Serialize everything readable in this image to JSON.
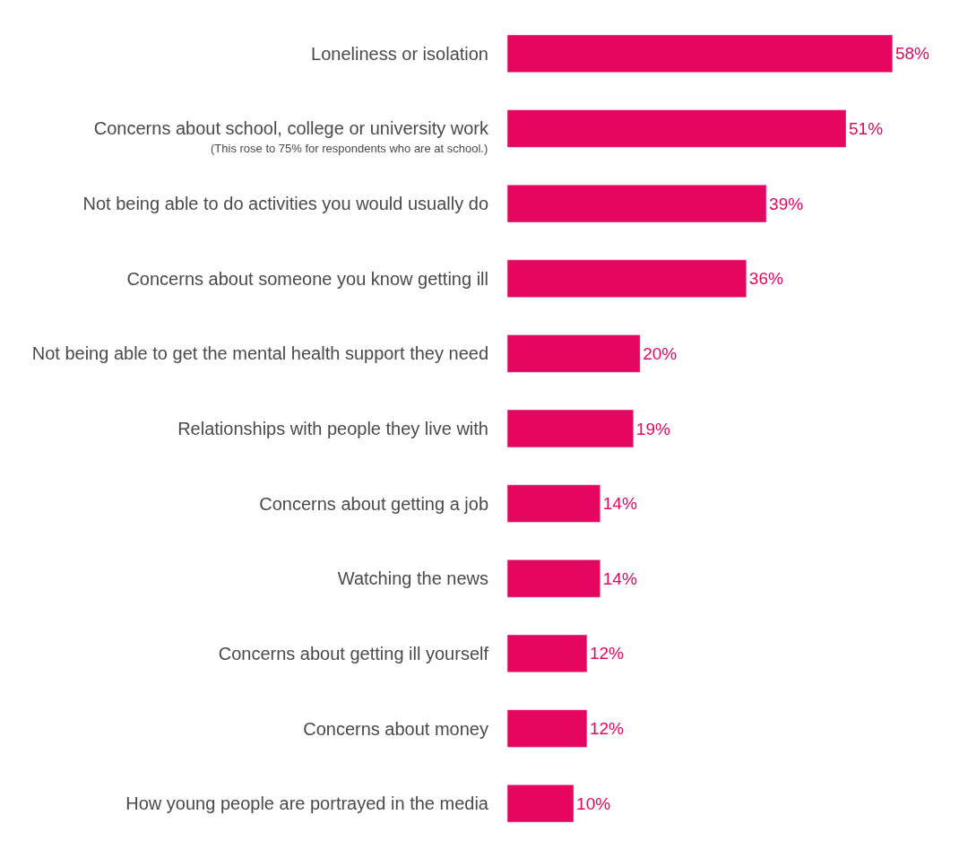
{
  "chart_data": {
    "type": "bar",
    "orientation": "horizontal",
    "categories": [
      "Loneliness or isolation",
      "Concerns about school, college or university work",
      "Not being able to do activities you would usually do",
      "Concerns about someone you know getting ill",
      "Not being able to get the mental health support they need",
      "Relationships with people they live with",
      "Concerns about getting a job",
      "Watching the news",
      "Concerns about getting ill yourself",
      "Concerns about money",
      "How young people are portrayed in the media"
    ],
    "values": [
      58,
      51,
      39,
      36,
      20,
      19,
      14,
      14,
      12,
      12,
      10
    ],
    "value_labels": [
      "58%",
      "51%",
      "39%",
      "36%",
      "20%",
      "19%",
      "14%",
      "14%",
      "12%",
      "12%",
      "10%"
    ],
    "color": "#e5065f",
    "xlim": [
      0,
      68
    ],
    "tick_labels": "y",
    "annotations": [
      "(This rose to 75% for respondents who are at school.)"
    ]
  }
}
